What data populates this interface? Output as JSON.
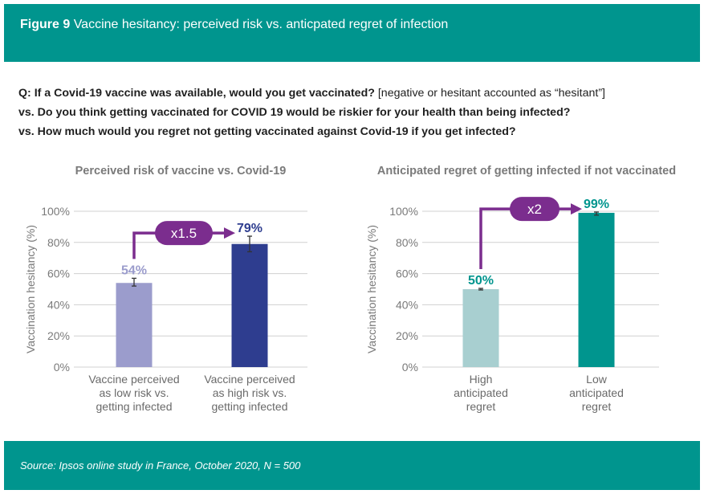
{
  "figure": {
    "number": "Figure 9",
    "title": "Vaccine hesitancy: perceived risk vs. anticpated regret of infection"
  },
  "question": {
    "line1": "Q: If a Covid-19 vaccine was available, would you get vaccinated?",
    "line1_note": "[negative or hesitant accounted as “hesitant”]",
    "line2": "vs. Do you think getting vaccinated for COVID 19 would be riskier for your health than being infected?",
    "line3": "vs. How much would you regret not getting vaccinated against Covid-19 if you get infected?"
  },
  "source": "Source: Ipsos online study in France, October 2020, N = 500",
  "colors": {
    "teal_band": "#00958e",
    "arrow": "#7b2d8e",
    "left_bar_1": "#9b9ccc",
    "left_bar_2": "#2e3d8f",
    "right_bar_1": "#a8cfd0",
    "right_bar_2": "#00958e"
  },
  "chart_data": [
    {
      "type": "bar",
      "title": "Perceived risk of vaccine vs. Covid-19",
      "ylabel": "Vaccination hesitancy (%)",
      "ylim": [
        0,
        100
      ],
      "yticks": [
        "0%",
        "20%",
        "40%",
        "60%",
        "80%",
        "100%"
      ],
      "grid": true,
      "categories": [
        [
          "Vaccine perceived",
          "as low risk vs.",
          "getting infected"
        ],
        [
          "Vaccine perceived",
          "as high risk vs.",
          "getting infected"
        ]
      ],
      "values": [
        54,
        79
      ],
      "value_labels": [
        "54%",
        "79%"
      ],
      "error": [
        [
          52,
          57
        ],
        [
          74,
          84
        ]
      ],
      "bar_colors": [
        "#9b9ccc",
        "#2e3d8f"
      ],
      "label_colors": [
        "#9b9ccc",
        "#2e3d8f"
      ],
      "annotation": {
        "text": "x1.5",
        "from": 0,
        "to": 1
      }
    },
    {
      "type": "bar",
      "title": "Anticipated regret of getting infected if not vaccinated",
      "ylabel": "Vaccination hesitancy (%)",
      "ylim": [
        0,
        100
      ],
      "yticks": [
        "0%",
        "20%",
        "40%",
        "60%",
        "80%",
        "100%"
      ],
      "grid": true,
      "categories": [
        [
          "High",
          "anticipated",
          "regret"
        ],
        [
          "Low",
          "anticipated",
          "regret"
        ]
      ],
      "values": [
        50,
        99
      ],
      "value_labels": [
        "50%",
        "99%"
      ],
      "error": [
        [
          49.5,
          50.5
        ],
        [
          97.5,
          99.5
        ]
      ],
      "bar_colors": [
        "#a8cfd0",
        "#00958e"
      ],
      "label_colors": [
        "#00958e",
        "#00958e"
      ],
      "annotation": {
        "text": "x2",
        "from": 0,
        "to": 1
      }
    }
  ]
}
